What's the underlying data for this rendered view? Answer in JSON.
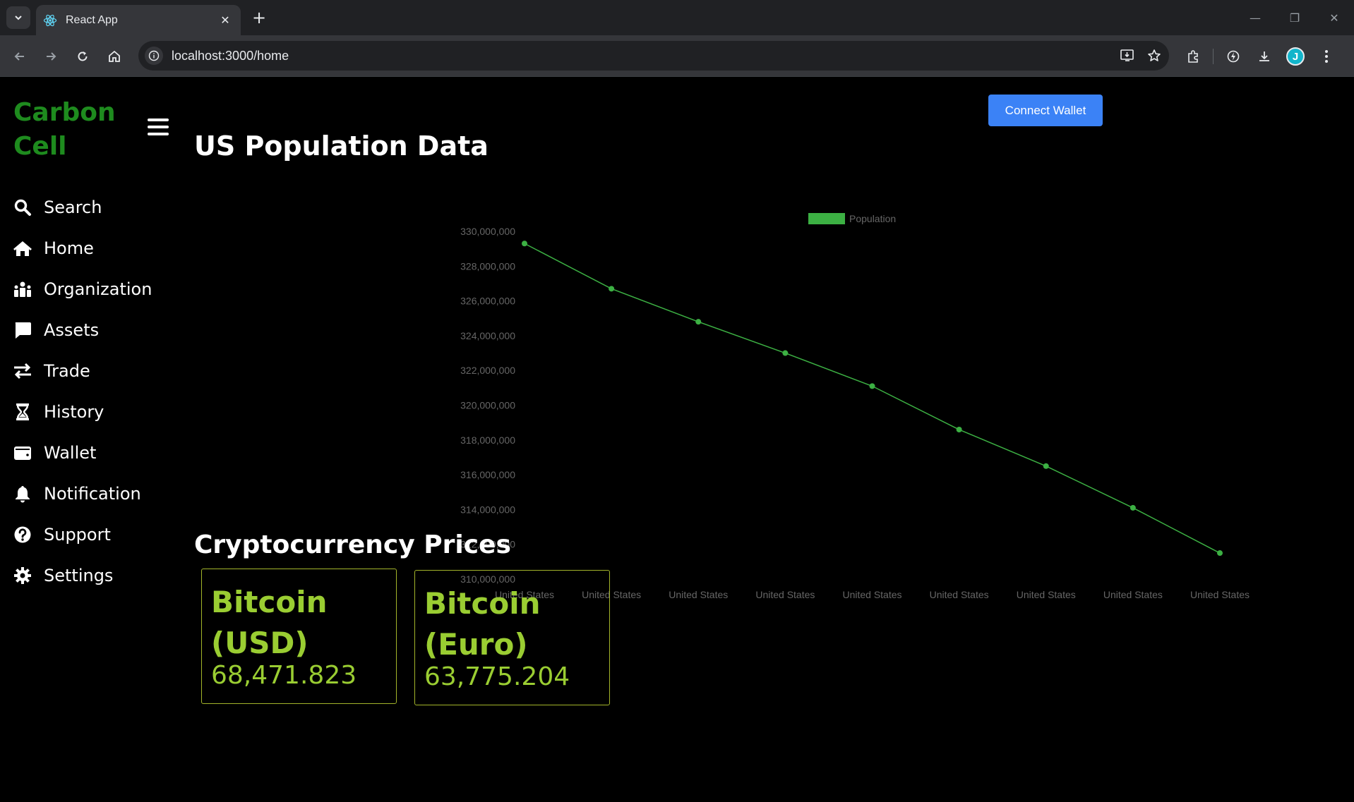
{
  "browser": {
    "tab_title": "React App",
    "url": "localhost:3000/home",
    "profile_initial": "J"
  },
  "app": {
    "brand": "Carbon Cell",
    "connect_wallet": "Connect Wallet",
    "sidebar": {
      "items": [
        {
          "label": "Search",
          "icon": "search-icon"
        },
        {
          "label": "Home",
          "icon": "home-icon"
        },
        {
          "label": "Organization",
          "icon": "organization-icon"
        },
        {
          "label": "Assets",
          "icon": "assets-icon"
        },
        {
          "label": "Trade",
          "icon": "trade-icon"
        },
        {
          "label": "History",
          "icon": "hourglass-icon"
        },
        {
          "label": "Wallet",
          "icon": "wallet-icon"
        },
        {
          "label": "Notification",
          "icon": "bell-icon"
        },
        {
          "label": "Support",
          "icon": "question-icon"
        },
        {
          "label": "Settings",
          "icon": "gear-icon"
        }
      ]
    },
    "page_title": "US Population Data",
    "crypto_title": "Cryptocurrency Prices",
    "cards": [
      {
        "name": "Bitcoin (USD)",
        "price": "68,471.823"
      },
      {
        "name": "Bitcoin (Euro)",
        "price": "63,775.204"
      }
    ]
  },
  "colors": {
    "brand": "#1e8b1e",
    "accent_button": "#3b82f6",
    "line": "#3cb043",
    "card_text": "#9acd32"
  },
  "chart_data": {
    "type": "line",
    "title": "",
    "xlabel": "",
    "ylabel": "",
    "categories": [
      "United States",
      "United States",
      "United States",
      "United States",
      "United States",
      "United States",
      "United States",
      "United States",
      "United States"
    ],
    "series": [
      {
        "name": "Population",
        "values": [
          329300000,
          326700000,
          324800000,
          323000000,
          321100000,
          318600000,
          316500000,
          314100000,
          311500000
        ]
      }
    ],
    "ylim": [
      310000000,
      330000000
    ],
    "yticks": [
      "330,000,000",
      "328,000,000",
      "326,000,000",
      "324,000,000",
      "322,000,000",
      "320,000,000",
      "318,000,000",
      "316,000,000",
      "314,000,000",
      "312,000,000",
      "310,000,000"
    ],
    "legend": "top-center",
    "grid": false
  }
}
